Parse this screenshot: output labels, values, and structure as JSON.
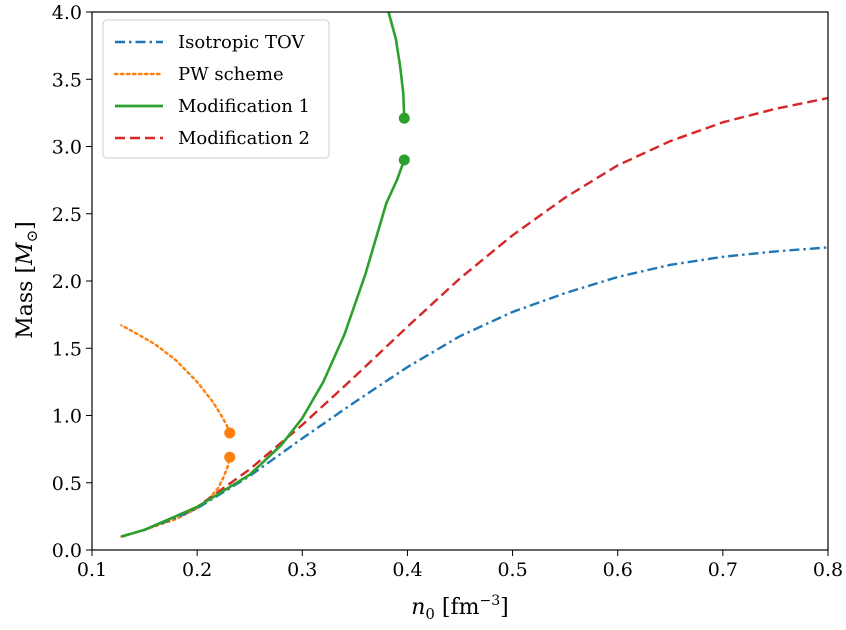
{
  "chart_data": {
    "type": "line",
    "xlabel": "n0 [fm^-3]",
    "ylabel": "Mass [M_sun]",
    "xlim": [
      0.1,
      0.8
    ],
    "ylim": [
      0.0,
      4.0
    ],
    "xticks": [
      0.1,
      0.2,
      0.3,
      0.4,
      0.5,
      0.6,
      0.7,
      0.8
    ],
    "yticks": [
      0.0,
      0.5,
      1.0,
      1.5,
      2.0,
      2.5,
      3.0,
      3.5,
      4.0
    ],
    "xtick_labels": [
      "0.1",
      "0.2",
      "0.3",
      "0.4",
      "0.5",
      "0.6",
      "0.7",
      "0.8"
    ],
    "ytick_labels": [
      "0.0",
      "0.5",
      "1.0",
      "1.5",
      "2.0",
      "2.5",
      "3.0",
      "3.5",
      "4.0"
    ],
    "grid": false,
    "legend_position": "top-left",
    "series": [
      {
        "name": "Isotropic TOV",
        "color": "#1f77b4",
        "dash": "dashdot",
        "points": [
          [
            0.128,
            0.1
          ],
          [
            0.15,
            0.15
          ],
          [
            0.18,
            0.24
          ],
          [
            0.2,
            0.31
          ],
          [
            0.25,
            0.55
          ],
          [
            0.3,
            0.83
          ],
          [
            0.35,
            1.1
          ],
          [
            0.4,
            1.36
          ],
          [
            0.45,
            1.59
          ],
          [
            0.5,
            1.77
          ],
          [
            0.55,
            1.91
          ],
          [
            0.6,
            2.03
          ],
          [
            0.65,
            2.12
          ],
          [
            0.7,
            2.18
          ],
          [
            0.75,
            2.22
          ],
          [
            0.8,
            2.25
          ]
        ]
      },
      {
        "name": "PW scheme",
        "color": "#ff7f0e",
        "dash": "dotted",
        "branches": [
          [
            [
              0.128,
              0.1
            ],
            [
              0.15,
              0.15
            ],
            [
              0.18,
              0.23
            ],
            [
              0.2,
              0.31
            ],
            [
              0.21,
              0.37
            ],
            [
              0.22,
              0.46
            ],
            [
              0.225,
              0.54
            ],
            [
              0.229,
              0.62
            ],
            [
              0.231,
              0.69
            ]
          ],
          [
            [
              0.231,
              0.87
            ],
            [
              0.228,
              0.93
            ],
            [
              0.223,
              1.0
            ],
            [
              0.215,
              1.1
            ],
            [
              0.2,
              1.25
            ],
            [
              0.18,
              1.41
            ],
            [
              0.16,
              1.53
            ],
            [
              0.14,
              1.62
            ],
            [
              0.128,
              1.67
            ]
          ]
        ],
        "markers": [
          [
            0.231,
            0.69
          ],
          [
            0.231,
            0.87
          ]
        ]
      },
      {
        "name": "Modification 1",
        "color": "#2ca02c",
        "dash": "solid",
        "branches": [
          [
            [
              0.128,
              0.1
            ],
            [
              0.15,
              0.15
            ],
            [
              0.2,
              0.32
            ],
            [
              0.25,
              0.56
            ],
            [
              0.28,
              0.78
            ],
            [
              0.3,
              0.98
            ],
            [
              0.32,
              1.25
            ],
            [
              0.34,
              1.6
            ],
            [
              0.36,
              2.05
            ],
            [
              0.38,
              2.58
            ],
            [
              0.39,
              2.75
            ],
            [
              0.397,
              2.9
            ]
          ],
          [
            [
              0.397,
              3.21
            ],
            [
              0.396,
              3.4
            ],
            [
              0.393,
              3.6
            ],
            [
              0.389,
              3.8
            ],
            [
              0.382,
              4.0
            ]
          ]
        ],
        "markers": [
          [
            0.397,
            2.9
          ],
          [
            0.397,
            3.21
          ]
        ]
      },
      {
        "name": "Modification 2",
        "color": "#d62728",
        "dash": "dashed",
        "points": [
          [
            0.128,
            0.1
          ],
          [
            0.15,
            0.15
          ],
          [
            0.2,
            0.32
          ],
          [
            0.25,
            0.6
          ],
          [
            0.3,
            0.93
          ],
          [
            0.35,
            1.29
          ],
          [
            0.4,
            1.66
          ],
          [
            0.45,
            2.02
          ],
          [
            0.5,
            2.34
          ],
          [
            0.55,
            2.62
          ],
          [
            0.6,
            2.86
          ],
          [
            0.65,
            3.04
          ],
          [
            0.7,
            3.18
          ],
          [
            0.75,
            3.28
          ],
          [
            0.8,
            3.36
          ]
        ]
      }
    ]
  }
}
